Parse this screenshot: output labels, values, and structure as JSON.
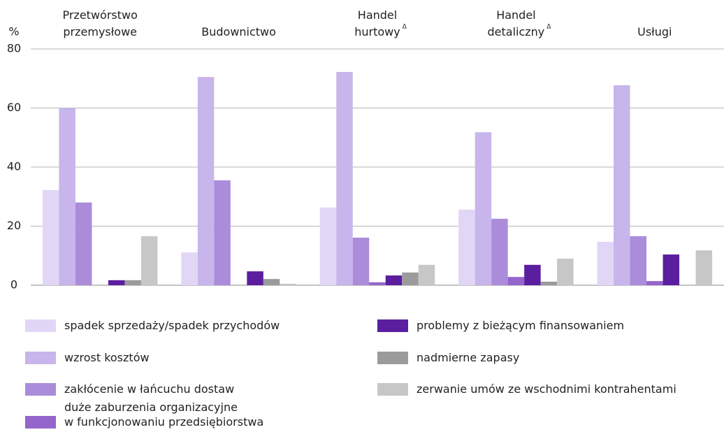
{
  "chart_data": {
    "type": "bar",
    "y_label": "%",
    "categories": [
      "Przetwórstwo\nprzemysłowe",
      "Budownictwo",
      "Handel\nhurtowy",
      "Handel\ndetaliczny",
      "Usługi"
    ],
    "category_notes": [
      null,
      null,
      "Δ",
      "Δ",
      null
    ],
    "series": [
      {
        "name": "spadek sprzedaży/spadek przychodów",
        "color": "#e2d6f6",
        "values": [
          32.2,
          11.1,
          26.3,
          25.6,
          14.7
        ]
      },
      {
        "name": "wzrost kosztów",
        "color": "#c8b5eb",
        "values": [
          60,
          70.5,
          72.2,
          51.8,
          67.7
        ]
      },
      {
        "name": "zakłócenie w łańcuchu dostaw",
        "color": "#aa8cda",
        "values": [
          28,
          35.5,
          16.1,
          22.5,
          16.6
        ]
      },
      {
        "name": "duże zaburzenia organizacyjne\nw funkcjonowaniu przedsiębiorstwa",
        "color": "#9466cc",
        "values": [
          0,
          0,
          1,
          2.8,
          1.4
        ]
      },
      {
        "name": "problemy z bieżącym finansowaniem",
        "color": "#5a1e9f",
        "values": [
          1.7,
          4.7,
          3.3,
          6.9,
          10.4
        ]
      },
      {
        "name": "nadmierne zapasy",
        "color": "#9b9b9b",
        "values": [
          1.7,
          2.1,
          4.3,
          1.2,
          0
        ]
      },
      {
        "name": "zerwanie umów ze wschodnimi kontrahentami",
        "color": "#c7c7c7",
        "values": [
          16.6,
          0.5,
          6.9,
          9,
          11.8
        ]
      }
    ],
    "ylim": [
      0,
      80
    ],
    "yticks": [
      0,
      20,
      40,
      60,
      80
    ],
    "grid": true
  }
}
